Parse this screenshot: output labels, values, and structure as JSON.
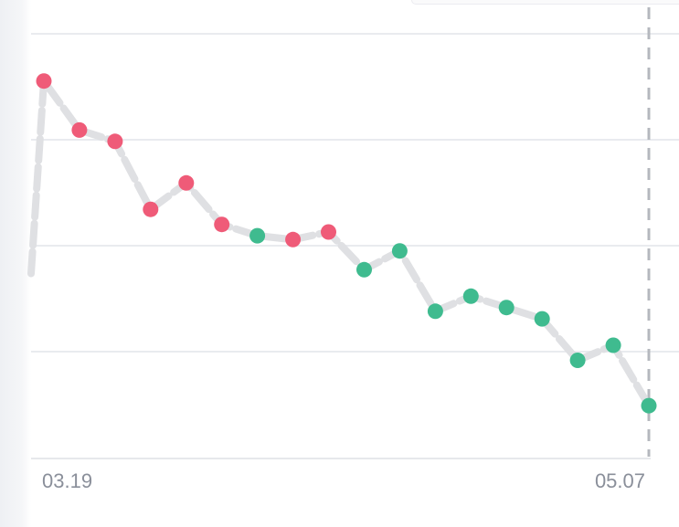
{
  "chart_data": {
    "type": "line",
    "x_tick_labels": [
      "03.19",
      "05.07"
    ],
    "values": [
      81,
      68,
      65,
      47,
      54,
      43,
      40,
      39,
      41,
      31,
      36,
      20,
      24,
      21,
      18,
      7,
      11,
      -5
    ],
    "point_colors": [
      "red",
      "red",
      "red",
      "red",
      "red",
      "red",
      "green",
      "red",
      "red",
      "green",
      "green",
      "green",
      "green",
      "green",
      "green",
      "green",
      "green",
      "green"
    ],
    "line_lead_in": 30,
    "ylim": [
      -19,
      101
    ],
    "grid": true,
    "colors": {
      "red": "#ef5b78",
      "green": "#3fbb8f",
      "line": "#dfe0e3",
      "grid": "#e9ebef",
      "marker_line": "#b5b8be",
      "axis_text": "#8a8f9a"
    }
  }
}
